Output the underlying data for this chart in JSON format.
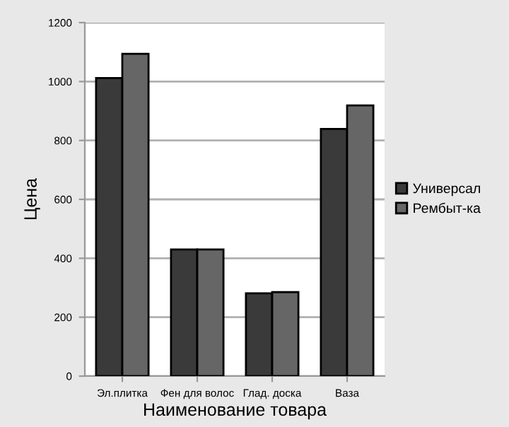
{
  "chart_data": {
    "type": "bar",
    "xlabel": "Наименование товара",
    "ylabel": "Цена",
    "categories": [
      "Эл.плитка",
      "Фен для волос",
      "Глад. доска",
      "Ваза"
    ],
    "series": [
      {
        "name": "Универсал",
        "color": "#3a3a3a",
        "values": [
          1012,
          430,
          281,
          839
        ]
      },
      {
        "name": "Рембыт-ка",
        "color": "#666666",
        "values": [
          1094,
          430,
          285,
          919
        ]
      }
    ],
    "ylim": [
      0,
      1200
    ],
    "yticks": [
      0,
      200,
      400,
      600,
      800,
      1000,
      1200
    ],
    "grid": "y",
    "legend": "right"
  }
}
